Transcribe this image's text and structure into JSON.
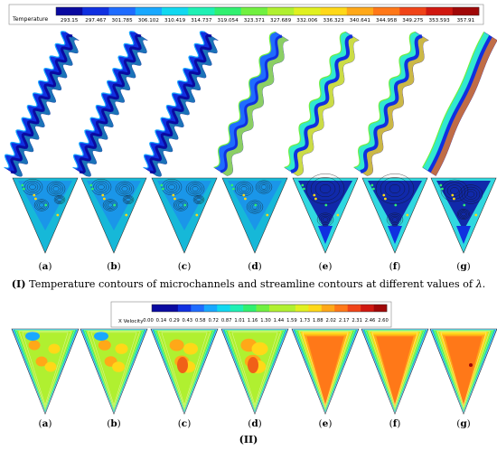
{
  "temperature_legend": {
    "title": "Temperature",
    "ticks": [
      "293.15",
      "297.467",
      "301.785",
      "306.102",
      "310.419",
      "314.737",
      "319.054",
      "323.371",
      "327.689",
      "332.006",
      "336.323",
      "340.641",
      "344.958",
      "349.275",
      "353.593",
      "357.91"
    ]
  },
  "velocity_legend": {
    "title": "X Velocity",
    "ticks": [
      "0.00",
      "0.14",
      "0.29",
      "0.43",
      "0.58",
      "0.72",
      "0.87",
      "1.01",
      "1.16",
      "1.30",
      "1.44",
      "1.59",
      "1.73",
      "1.88",
      "2.02",
      "2.17",
      "2.31",
      "2.46",
      "2.60"
    ]
  },
  "colormap": [
    "#0a0aa0",
    "#1030e0",
    "#1f6cff",
    "#18a8ff",
    "#10d8f0",
    "#1ef0b4",
    "#30f070",
    "#70f040",
    "#b0f030",
    "#e0f020",
    "#ffd818",
    "#ffa818",
    "#ff7818",
    "#f04418",
    "#d01810",
    "#a00808"
  ],
  "panel_labels": [
    "(a)",
    "(b)",
    "(c)",
    "(d)",
    "(e)",
    "(f)",
    "(g)"
  ],
  "caption_I": {
    "roman": "(I)",
    "text": " Temperature contours of microchannels and streamline contours at different values of ",
    "symbol": "λ",
    "end": "."
  },
  "caption_II": {
    "roman": "(II)"
  },
  "panel_shading": {
    "description_note": "fraction of hot (red/orange) core for each column a–g",
    "channel_heat": [
      0.05,
      0.05,
      0.12,
      0.25,
      0.55,
      0.65,
      0.9
    ],
    "velocity_core": [
      0.35,
      0.4,
      0.5,
      0.6,
      0.8,
      0.82,
      0.85
    ]
  }
}
